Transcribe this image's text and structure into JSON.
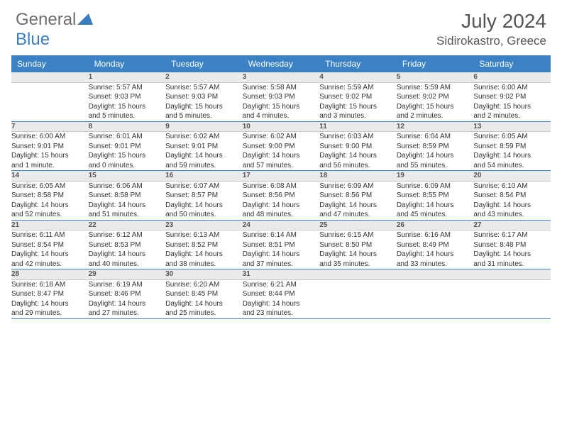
{
  "logo": {
    "gray": "General",
    "blue": "Blue"
  },
  "title": "July 2024",
  "location": "Sidirokastro, Greece",
  "colors": {
    "header_bg": "#3b82c4",
    "daynum_bg": "#e9eaeb",
    "row_border": "#3b82c4",
    "logo_gray": "#6d6d6d",
    "logo_blue": "#3b7ec0"
  },
  "weekdays": [
    "Sunday",
    "Monday",
    "Tuesday",
    "Wednesday",
    "Thursday",
    "Friday",
    "Saturday"
  ],
  "weeks": [
    {
      "nums": [
        "",
        "1",
        "2",
        "3",
        "4",
        "5",
        "6"
      ],
      "cells": [
        {
          "lines": []
        },
        {
          "lines": [
            "Sunrise: 5:57 AM",
            "Sunset: 9:03 PM",
            "Daylight: 15 hours",
            "and 5 minutes."
          ]
        },
        {
          "lines": [
            "Sunrise: 5:57 AM",
            "Sunset: 9:03 PM",
            "Daylight: 15 hours",
            "and 5 minutes."
          ]
        },
        {
          "lines": [
            "Sunrise: 5:58 AM",
            "Sunset: 9:03 PM",
            "Daylight: 15 hours",
            "and 4 minutes."
          ]
        },
        {
          "lines": [
            "Sunrise: 5:59 AM",
            "Sunset: 9:02 PM",
            "Daylight: 15 hours",
            "and 3 minutes."
          ]
        },
        {
          "lines": [
            "Sunrise: 5:59 AM",
            "Sunset: 9:02 PM",
            "Daylight: 15 hours",
            "and 2 minutes."
          ]
        },
        {
          "lines": [
            "Sunrise: 6:00 AM",
            "Sunset: 9:02 PM",
            "Daylight: 15 hours",
            "and 2 minutes."
          ]
        }
      ]
    },
    {
      "nums": [
        "7",
        "8",
        "9",
        "10",
        "11",
        "12",
        "13"
      ],
      "cells": [
        {
          "lines": [
            "Sunrise: 6:00 AM",
            "Sunset: 9:01 PM",
            "Daylight: 15 hours",
            "and 1 minute."
          ]
        },
        {
          "lines": [
            "Sunrise: 6:01 AM",
            "Sunset: 9:01 PM",
            "Daylight: 15 hours",
            "and 0 minutes."
          ]
        },
        {
          "lines": [
            "Sunrise: 6:02 AM",
            "Sunset: 9:01 PM",
            "Daylight: 14 hours",
            "and 59 minutes."
          ]
        },
        {
          "lines": [
            "Sunrise: 6:02 AM",
            "Sunset: 9:00 PM",
            "Daylight: 14 hours",
            "and 57 minutes."
          ]
        },
        {
          "lines": [
            "Sunrise: 6:03 AM",
            "Sunset: 9:00 PM",
            "Daylight: 14 hours",
            "and 56 minutes."
          ]
        },
        {
          "lines": [
            "Sunrise: 6:04 AM",
            "Sunset: 8:59 PM",
            "Daylight: 14 hours",
            "and 55 minutes."
          ]
        },
        {
          "lines": [
            "Sunrise: 6:05 AM",
            "Sunset: 8:59 PM",
            "Daylight: 14 hours",
            "and 54 minutes."
          ]
        }
      ]
    },
    {
      "nums": [
        "14",
        "15",
        "16",
        "17",
        "18",
        "19",
        "20"
      ],
      "cells": [
        {
          "lines": [
            "Sunrise: 6:05 AM",
            "Sunset: 8:58 PM",
            "Daylight: 14 hours",
            "and 52 minutes."
          ]
        },
        {
          "lines": [
            "Sunrise: 6:06 AM",
            "Sunset: 8:58 PM",
            "Daylight: 14 hours",
            "and 51 minutes."
          ]
        },
        {
          "lines": [
            "Sunrise: 6:07 AM",
            "Sunset: 8:57 PM",
            "Daylight: 14 hours",
            "and 50 minutes."
          ]
        },
        {
          "lines": [
            "Sunrise: 6:08 AM",
            "Sunset: 8:56 PM",
            "Daylight: 14 hours",
            "and 48 minutes."
          ]
        },
        {
          "lines": [
            "Sunrise: 6:09 AM",
            "Sunset: 8:56 PM",
            "Daylight: 14 hours",
            "and 47 minutes."
          ]
        },
        {
          "lines": [
            "Sunrise: 6:09 AM",
            "Sunset: 8:55 PM",
            "Daylight: 14 hours",
            "and 45 minutes."
          ]
        },
        {
          "lines": [
            "Sunrise: 6:10 AM",
            "Sunset: 8:54 PM",
            "Daylight: 14 hours",
            "and 43 minutes."
          ]
        }
      ]
    },
    {
      "nums": [
        "21",
        "22",
        "23",
        "24",
        "25",
        "26",
        "27"
      ],
      "cells": [
        {
          "lines": [
            "Sunrise: 6:11 AM",
            "Sunset: 8:54 PM",
            "Daylight: 14 hours",
            "and 42 minutes."
          ]
        },
        {
          "lines": [
            "Sunrise: 6:12 AM",
            "Sunset: 8:53 PM",
            "Daylight: 14 hours",
            "and 40 minutes."
          ]
        },
        {
          "lines": [
            "Sunrise: 6:13 AM",
            "Sunset: 8:52 PM",
            "Daylight: 14 hours",
            "and 38 minutes."
          ]
        },
        {
          "lines": [
            "Sunrise: 6:14 AM",
            "Sunset: 8:51 PM",
            "Daylight: 14 hours",
            "and 37 minutes."
          ]
        },
        {
          "lines": [
            "Sunrise: 6:15 AM",
            "Sunset: 8:50 PM",
            "Daylight: 14 hours",
            "and 35 minutes."
          ]
        },
        {
          "lines": [
            "Sunrise: 6:16 AM",
            "Sunset: 8:49 PM",
            "Daylight: 14 hours",
            "and 33 minutes."
          ]
        },
        {
          "lines": [
            "Sunrise: 6:17 AM",
            "Sunset: 8:48 PM",
            "Daylight: 14 hours",
            "and 31 minutes."
          ]
        }
      ]
    },
    {
      "nums": [
        "28",
        "29",
        "30",
        "31",
        "",
        "",
        ""
      ],
      "cells": [
        {
          "lines": [
            "Sunrise: 6:18 AM",
            "Sunset: 8:47 PM",
            "Daylight: 14 hours",
            "and 29 minutes."
          ]
        },
        {
          "lines": [
            "Sunrise: 6:19 AM",
            "Sunset: 8:46 PM",
            "Daylight: 14 hours",
            "and 27 minutes."
          ]
        },
        {
          "lines": [
            "Sunrise: 6:20 AM",
            "Sunset: 8:45 PM",
            "Daylight: 14 hours",
            "and 25 minutes."
          ]
        },
        {
          "lines": [
            "Sunrise: 6:21 AM",
            "Sunset: 8:44 PM",
            "Daylight: 14 hours",
            "and 23 minutes."
          ]
        },
        {
          "lines": []
        },
        {
          "lines": []
        },
        {
          "lines": []
        }
      ]
    }
  ]
}
